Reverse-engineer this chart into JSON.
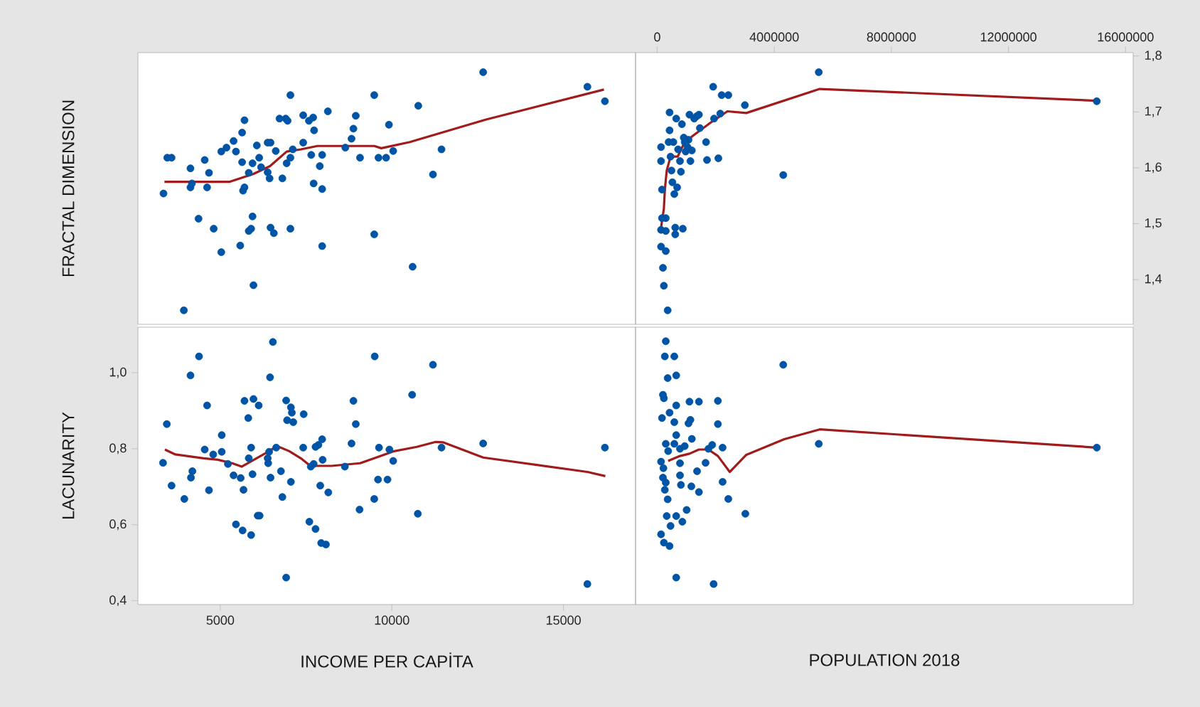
{
  "chart_data": [
    {
      "type": "scatter",
      "ylabel": "FRACTAL DIMENSION",
      "xlim": [
        2600,
        17100
      ],
      "ylim": [
        1.32,
        1.806
      ],
      "tick_labels": false,
      "marker": "circle",
      "series": [
        {
          "color": "#0054a6",
          "x": [
            3345,
            3455,
            3580,
            3938,
            4131,
            4131,
            4173,
            4366,
            4546,
            4615,
            4670,
            4808,
            5029,
            5029,
            5180,
            5387,
            5456,
            5581,
            5636,
            5636,
            5663,
            5705,
            5705,
            5829,
            5829,
            5898,
            5939,
            5967,
            5939,
            6064,
            6133,
            6188,
            6381,
            6381,
            6464,
            6436,
            6464,
            6560,
            6616,
            6726,
            6809,
            6905,
            6961,
            6933,
            7043,
            7043,
            7112,
            7043,
            7416,
            7416,
            7582,
            7706,
            7733,
            7650,
            7720,
            7899,
            7968,
            7968,
            7968,
            8134,
            8644,
            8824,
            8879,
            8948,
            9072,
            9486,
            9486,
            9610,
            9831,
            9914,
            10038,
            10604,
            10769,
            11197,
            11446,
            12660,
            15697,
            16207
          ],
          "values": [
            1.554,
            1.618,
            1.618,
            1.345,
            1.599,
            1.565,
            1.572,
            1.509,
            1.614,
            1.565,
            1.591,
            1.491,
            1.449,
            1.629,
            1.636,
            1.648,
            1.629,
            1.461,
            1.663,
            1.61,
            1.559,
            1.565,
            1.685,
            1.487,
            1.591,
            1.491,
            1.513,
            1.39,
            1.608,
            1.64,
            1.618,
            1.601,
            1.592,
            1.645,
            1.645,
            1.581,
            1.493,
            1.483,
            1.63,
            1.688,
            1.581,
            1.688,
            1.684,
            1.608,
            1.73,
            1.491,
            1.633,
            1.618,
            1.694,
            1.645,
            1.684,
            1.69,
            1.667,
            1.623,
            1.572,
            1.603,
            1.623,
            1.46,
            1.562,
            1.701,
            1.636,
            1.652,
            1.67,
            1.693,
            1.618,
            1.73,
            1.481,
            1.618,
            1.618,
            1.677,
            1.63,
            1.423,
            1.711,
            1.588,
            1.633,
            1.771,
            1.745,
            1.719
          ]
        },
        {
          "type": "line",
          "marker": "none",
          "color": "#a01c1c",
          "x": [
            3373,
            5277,
            5967,
            6450,
            6933,
            7347,
            7830,
            9486,
            9693,
            10521,
            12729,
            16179
          ],
          "values": [
            1.575,
            1.575,
            1.589,
            1.603,
            1.629,
            1.633,
            1.639,
            1.639,
            1.635,
            1.646,
            1.686,
            1.74
          ]
        }
      ]
    },
    {
      "type": "scatter",
      "xlim": [
        -740000,
        16260000
      ],
      "ylim": [
        1.32,
        1.806
      ],
      "xticks": [
        0,
        4000000,
        8000000,
        12000000,
        16000000
      ],
      "yticks": [
        {
          "value": 1.4,
          "label": "1,4"
        },
        {
          "value": 1.5,
          "label": "1,5"
        },
        {
          "value": 1.6,
          "label": "1,6"
        },
        {
          "value": 1.7,
          "label": "1,7"
        },
        {
          "value": 1.8,
          "label": "1,8"
        }
      ],
      "marker": "circle",
      "series": [
        {
          "color": "#0054a6",
          "x": [
            131000,
            131000,
            163000,
            163000,
            131000,
            131000,
            196000,
            228000,
            293000,
            357000,
            293000,
            293000,
            390000,
            422000,
            422000,
            455000,
            487000,
            519000,
            552000,
            584000,
            616000,
            616000,
            649000,
            681000,
            713000,
            778000,
            810000,
            843000,
            875000,
            908000,
            940000,
            972000,
            1037000,
            1069000,
            1102000,
            1134000,
            1183000,
            1264000,
            1345000,
            1425000,
            1458000,
            1668000,
            1701000,
            1911000,
            1943000,
            2089000,
            2154000,
            2202000,
            2429000,
            2995000,
            4306000,
            5519000,
            15017000
          ],
          "values": [
            1.637,
            1.612,
            1.561,
            1.51,
            1.489,
            1.459,
            1.421,
            1.389,
            1.451,
            1.345,
            1.487,
            1.51,
            1.646,
            1.699,
            1.667,
            1.62,
            1.595,
            1.574,
            1.646,
            1.553,
            1.493,
            1.481,
            1.688,
            1.565,
            1.633,
            1.612,
            1.593,
            1.678,
            1.491,
            1.654,
            1.646,
            1.629,
            1.637,
            1.65,
            1.695,
            1.612,
            1.631,
            1.688,
            1.692,
            1.695,
            1.671,
            1.646,
            1.614,
            1.745,
            1.688,
            1.617,
            1.697,
            1.73,
            1.73,
            1.712,
            1.587,
            1.771,
            1.719
          ]
        },
        {
          "type": "line",
          "marker": "none",
          "color": "#a01c1c",
          "x": [
            131000,
            228000,
            261000,
            325000,
            455000,
            698000,
            940000,
            1264000,
            1830000,
            2397000,
            3044000,
            5552000,
            15018000
          ],
          "values": [
            1.493,
            1.527,
            1.561,
            1.595,
            1.62,
            1.62,
            1.646,
            1.659,
            1.681,
            1.701,
            1.698,
            1.741,
            1.72
          ]
        }
      ]
    },
    {
      "type": "scatter",
      "xlabel": "INCOME PER CAPİTA",
      "ylabel": "LACUNARITY",
      "xlim": [
        2600,
        17100
      ],
      "ylim": [
        0.39,
        1.12
      ],
      "xticks": [
        5000,
        10000,
        15000
      ],
      "yticks": [
        {
          "value": 0.4,
          "label": "0,4"
        },
        {
          "value": 0.6,
          "label": "0,6"
        },
        {
          "value": 0.8,
          "label": "0,8"
        },
        {
          "value": 1.0,
          "label": "1,0"
        }
      ],
      "marker": "circle",
      "series": [
        {
          "color": "#0054a6",
          "x": [
            3331,
            3442,
            3580,
            3952,
            4132,
            4145,
            4187,
            4380,
            4546,
            4615,
            4670,
            4794,
            5042,
            5042,
            5222,
            5387,
            5456,
            5594,
            5650,
            5677,
            5705,
            5815,
            5829,
            5898,
            5898,
            5939,
            5967,
            6119,
            6091,
            6146,
            6381,
            6395,
            6422,
            6450,
            6464,
            6533,
            6629,
            6767,
            6809,
            6919,
            6919,
            6947,
            7057,
            7085,
            7126,
            7057,
            7430,
            7416,
            7595,
            7637,
            7720,
            7775,
            7775,
            7858,
            7913,
            7940,
            7982,
            7968,
            8078,
            8147,
            8630,
            8824,
            8879,
            8948,
            9058,
            9486,
            9500,
            9596,
            9624,
            9872,
            9928,
            10038,
            10590,
            10756,
            11197,
            11446,
            12660,
            15696,
            16207
          ],
          "values": [
            0.763,
            0.865,
            0.703,
            0.668,
            0.993,
            0.724,
            0.741,
            1.043,
            0.798,
            0.914,
            0.691,
            0.785,
            0.836,
            0.792,
            0.76,
            0.73,
            0.601,
            0.723,
            0.585,
            0.692,
            0.926,
            0.881,
            0.775,
            0.803,
            0.573,
            0.733,
            0.931,
            0.914,
            0.624,
            0.624,
            0.775,
            0.762,
            0.792,
            0.988,
            0.724,
            1.081,
            0.803,
            0.741,
            0.673,
            0.927,
            0.461,
            0.875,
            0.909,
            0.895,
            0.87,
            0.713,
            0.891,
            0.803,
            0.608,
            0.753,
            0.76,
            0.589,
            0.805,
            0.81,
            0.703,
            0.552,
            0.771,
            0.825,
            0.548,
            0.685,
            0.753,
            0.814,
            0.926,
            0.865,
            0.64,
            0.668,
            1.043,
            0.719,
            0.803,
            0.719,
            0.798,
            0.768,
            0.942,
            0.629,
            1.021,
            0.803,
            0.814,
            0.444,
            0.803
          ]
        },
        {
          "type": "line",
          "marker": "none",
          "color": "#a01c1c",
          "x": [
            3386,
            3690,
            4104,
            4518,
            4932,
            5346,
            5622,
            5898,
            6312,
            6657,
            7002,
            7347,
            7623,
            8244,
            9072,
            9486,
            10038,
            10728,
            11280,
            11487,
            12660,
            15696,
            16220
          ],
          "values": [
            0.798,
            0.785,
            0.78,
            0.775,
            0.771,
            0.762,
            0.753,
            0.767,
            0.788,
            0.807,
            0.794,
            0.775,
            0.755,
            0.755,
            0.762,
            0.775,
            0.793,
            0.805,
            0.818,
            0.817,
            0.777,
            0.739,
            0.728
          ]
        }
      ]
    },
    {
      "type": "scatter",
      "xlabel": "POPULATION 2018",
      "xlim": [
        -740000,
        16260000
      ],
      "ylim": [
        0.39,
        1.12
      ],
      "tick_labels": false,
      "marker": "circle",
      "series": [
        {
          "color": "#0054a6",
          "x": [
            293000,
            260000,
            584000,
            357000,
            649000,
            196000,
            228000,
            649000,
            422000,
            163000,
            584000,
            1102000,
            1425000,
            2073000,
            1069000,
            1134000,
            2073000,
            649000,
            293000,
            374000,
            131000,
            212000,
            196000,
            293000,
            260000,
            357000,
            584000,
            778000,
            940000,
            1183000,
            778000,
            778000,
            810000,
            1166000,
            1425000,
            1361000,
            1652000,
            1749000,
            1878000,
            2234000,
            2234000,
            2429000,
            3011000,
            1005000,
            325000,
            649000,
            859000,
            455000,
            131000,
            228000,
            422000,
            649000,
            1927000,
            4306000,
            5519000,
            15018000
          ],
          "values": [
            1.083,
            1.043,
            1.043,
            0.986,
            0.993,
            0.942,
            0.933,
            0.914,
            0.895,
            0.881,
            0.87,
            0.924,
            0.924,
            0.926,
            0.867,
            0.876,
            0.865,
            0.836,
            0.813,
            0.794,
            0.766,
            0.749,
            0.724,
            0.711,
            0.692,
            0.667,
            0.813,
            0.8,
            0.807,
            0.826,
            0.762,
            0.73,
            0.705,
            0.701,
            0.686,
            0.741,
            0.763,
            0.8,
            0.81,
            0.803,
            0.713,
            0.668,
            0.629,
            0.639,
            0.623,
            0.623,
            0.608,
            0.597,
            0.575,
            0.553,
            0.544,
            0.461,
            0.444,
            1.021,
            0.813,
            0.803
          ]
        },
        {
          "type": "line",
          "marker": "none",
          "color": "#a01c1c",
          "x": [
            374000,
            778000,
            1102000,
            1425000,
            1749000,
            2073000,
            2477000,
            3044000,
            4338000,
            5552000,
            15018000
          ],
          "values": [
            0.768,
            0.781,
            0.787,
            0.798,
            0.798,
            0.781,
            0.739,
            0.784,
            0.825,
            0.851,
            0.803
          ]
        }
      ]
    }
  ]
}
